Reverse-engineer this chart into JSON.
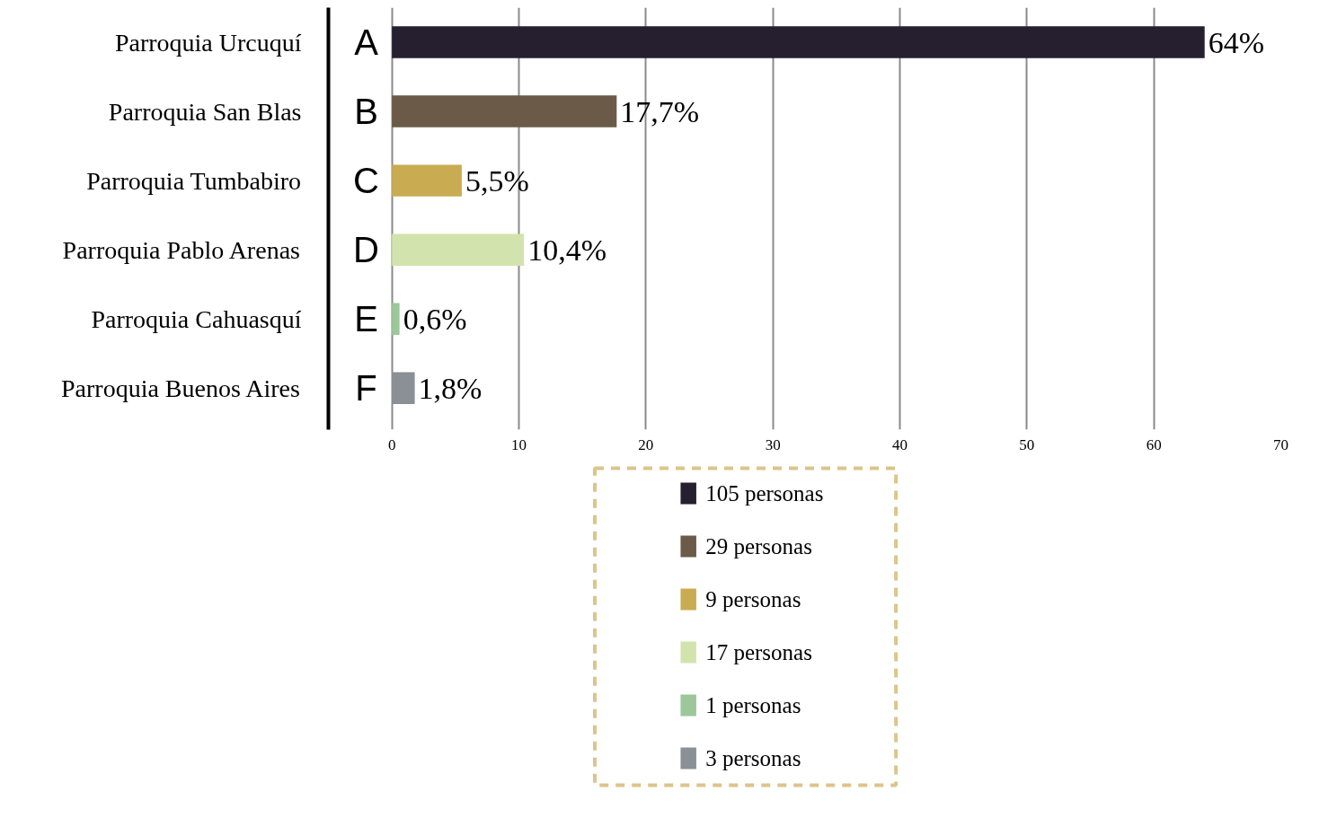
{
  "chart_data": {
    "type": "bar",
    "orientation": "horizontal",
    "categories": [
      "Parroquia Urcuquí",
      "Parroquia San Blas",
      "Parroquia Tumbabiro",
      "Parroquia Pablo Arenas",
      "Parroquia Cahuasquí",
      "Parroquia Buenos Aires"
    ],
    "series": [
      {
        "name": "105 personas",
        "color": "#261f30",
        "values": [
          64,
          null,
          null,
          null,
          null,
          null
        ],
        "value_labels": [
          "64%",
          null,
          null,
          null,
          null,
          null
        ]
      },
      {
        "name": "29 personas",
        "color": "#6b5a48",
        "values": [
          null,
          17.7,
          null,
          null,
          null,
          null
        ],
        "value_labels": [
          null,
          "17,7%",
          null,
          null,
          null,
          null
        ]
      },
      {
        "name": "9 personas",
        "color": "#c9ab52",
        "values": [
          null,
          null,
          5.5,
          null,
          null,
          null
        ],
        "value_labels": [
          null,
          null,
          "5,5%",
          null,
          null,
          null
        ]
      },
      {
        "name": "17 personas",
        "color": "#d3e3ad",
        "values": [
          null,
          null,
          null,
          10.4,
          null,
          null
        ],
        "value_labels": [
          null,
          null,
          null,
          "10,4%",
          null,
          null
        ]
      },
      {
        "name": "1 personas",
        "color": "#9bc79b",
        "values": [
          null,
          null,
          null,
          null,
          0.6,
          null
        ],
        "value_labels": [
          null,
          null,
          null,
          null,
          "0,6%",
          null
        ]
      },
      {
        "name": "3 personas",
        "color": "#8a9096",
        "values": [
          null,
          null,
          null,
          null,
          null,
          1.8
        ],
        "value_labels": [
          null,
          null,
          null,
          null,
          null,
          "1,8%"
        ]
      }
    ],
    "annotations": [
      "A",
      "B",
      "C",
      "D",
      "E",
      "F"
    ],
    "xlim": [
      -5,
      70
    ],
    "xticks": [
      0,
      10,
      20,
      30,
      40,
      50,
      60,
      70
    ],
    "grid": "x",
    "legend": "bottom left"
  }
}
